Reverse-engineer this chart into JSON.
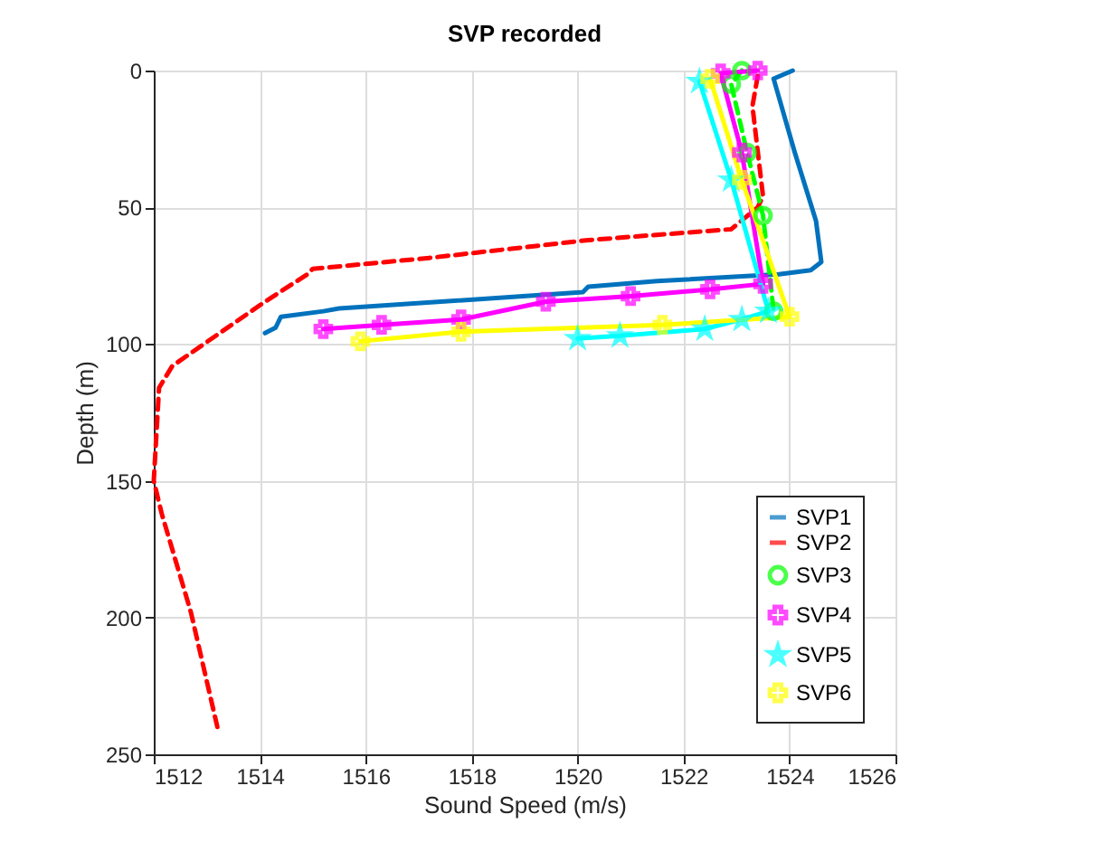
{
  "chart_data": {
    "type": "line",
    "title": "SVP recorded",
    "xlabel": "Sound Speed (m/s)",
    "ylabel": "Depth (m)",
    "xlim": [
      1512,
      1526
    ],
    "xticks": [
      1512,
      1514,
      1516,
      1518,
      1520,
      1522,
      1524,
      1526
    ],
    "ylim": [
      250,
      0
    ],
    "yticks": [
      0,
      50,
      100,
      150,
      200,
      250
    ],
    "grid": true,
    "legend": "bottom right",
    "series": [
      {
        "name": "SVP1",
        "color": "#0072bd",
        "line_style": "solid",
        "marker": "none",
        "x": [
          1524.06,
          1523.7,
          1524.1,
          1524.5,
          1524.6,
          1524.4,
          1523.8,
          1521.5,
          1520.2,
          1520.1,
          1515.5,
          1515.2,
          1514.4,
          1514.3,
          1514.1
        ],
        "values": [
          0,
          3,
          30,
          55,
          70,
          73,
          74.5,
          77,
          79,
          81,
          87,
          88,
          90,
          94,
          96
        ]
      },
      {
        "name": "SVP2",
        "color": "#ff0000",
        "line_style": "dashed",
        "marker": "none",
        "x": [
          1523.4,
          1523.3,
          1523.5,
          1523.4,
          1522.9,
          1520.2,
          1517.2,
          1515,
          1514.9,
          1514.1,
          1512.35,
          1512.1,
          1512,
          1512.15,
          1512.7,
          1513.2
        ],
        "values": [
          2,
          13,
          46,
          50,
          58,
          62,
          68.5,
          72.5,
          74.5,
          84.5,
          108,
          116,
          150,
          162,
          198,
          240
        ]
      },
      {
        "name": "SVP3",
        "color": "#00ff00",
        "line_style": "dashed",
        "marker": "circle",
        "x": [
          1523.1,
          1522.9,
          1523.2,
          1523.5,
          1523.7
        ],
        "values": [
          0,
          5,
          30,
          53,
          88
        ]
      },
      {
        "name": "SVP4",
        "color": "#ff00ff",
        "line_style": "solid",
        "marker": "cross",
        "x": [
          1523.4,
          1522.7,
          1523.1,
          1523.5,
          1522.5,
          1521,
          1519.4,
          1517.8,
          1516.3,
          1515.2
        ],
        "values": [
          0,
          1,
          30,
          78,
          80,
          82.5,
          84.5,
          91,
          93,
          94.5
        ]
      },
      {
        "name": "SVP5",
        "color": "#00ffff",
        "line_style": "solid",
        "marker": "star",
        "x": [
          1522.3,
          1522.9,
          1523.6,
          1523.1,
          1522.4,
          1520.8,
          1520
        ],
        "values": [
          4,
          40,
          88,
          91,
          94.5,
          97,
          98
        ]
      },
      {
        "name": "SVP6",
        "color": "#ffff00",
        "line_style": "solid",
        "marker": "cross",
        "x": [
          1522.5,
          1523.1,
          1524,
          1521.6,
          1517.8,
          1515.9
        ],
        "values": [
          3,
          40,
          90,
          93,
          95.5,
          99
        ]
      }
    ]
  }
}
